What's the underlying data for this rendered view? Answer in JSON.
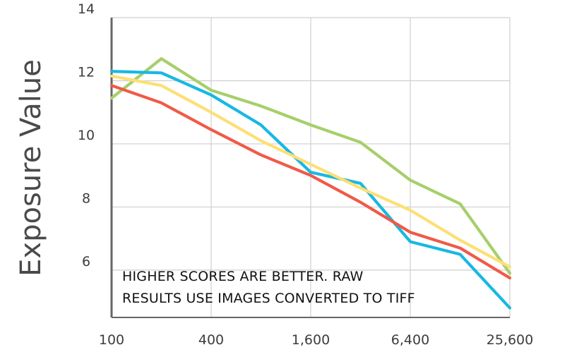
{
  "chart_data": {
    "type": "line",
    "ylabel": "Exposure Value",
    "xlabel": "",
    "title": "",
    "x_scale": "log2",
    "x": [
      100,
      200,
      400,
      800,
      1600,
      3200,
      6400,
      12800,
      25600
    ],
    "x_tick_labels": [
      {
        "value": 100,
        "label": "100"
      },
      {
        "value": 400,
        "label": "400"
      },
      {
        "value": 1600,
        "label": "1,600"
      },
      {
        "value": 6400,
        "label": "6,400"
      },
      {
        "value": 25600,
        "label": "25,600"
      }
    ],
    "y_ticks": [
      {
        "value": 6,
        "label": "6"
      },
      {
        "value": 8,
        "label": "8"
      },
      {
        "value": 10,
        "label": "10"
      },
      {
        "value": 12,
        "label": "12"
      },
      {
        "value": 14,
        "label": "14"
      }
    ],
    "ylim": [
      4.5,
      14
    ],
    "grid": true,
    "annotation": [
      "HIGHER SCORES ARE BETTER. RAW",
      "RESULTS USE IMAGES CONVERTED TO TIFF"
    ],
    "series": [
      {
        "color": "#a6cf6a",
        "points": [
          [
            100,
            11.45
          ],
          [
            200,
            12.7
          ],
          [
            400,
            11.7
          ],
          [
            800,
            11.2
          ],
          [
            1600,
            10.6
          ],
          [
            3200,
            10.05
          ],
          [
            6400,
            8.85
          ],
          [
            12800,
            8.1
          ],
          [
            25600,
            5.9
          ]
        ]
      },
      {
        "color": "#18b8e2",
        "points": [
          [
            100,
            12.3
          ],
          [
            200,
            12.25
          ],
          [
            400,
            11.55
          ],
          [
            800,
            10.6
          ],
          [
            1600,
            9.1
          ],
          [
            3200,
            8.75
          ],
          [
            6400,
            6.9
          ],
          [
            12800,
            6.5
          ],
          [
            25600,
            4.8
          ]
        ]
      },
      {
        "color": "#fddf75",
        "points": [
          [
            100,
            12.15
          ],
          [
            200,
            11.85
          ],
          [
            400,
            11.0
          ],
          [
            800,
            10.1
          ],
          [
            1600,
            9.35
          ],
          [
            3200,
            8.6
          ],
          [
            6400,
            7.9
          ],
          [
            12800,
            6.95
          ],
          [
            25600,
            6.1
          ]
        ]
      },
      {
        "color": "#f05a48",
        "points": [
          [
            100,
            11.85
          ],
          [
            200,
            11.3
          ],
          [
            400,
            10.45
          ],
          [
            800,
            9.65
          ],
          [
            1600,
            9.0
          ],
          [
            3200,
            8.15
          ],
          [
            6400,
            7.2
          ],
          [
            12800,
            6.7
          ],
          [
            25600,
            5.75
          ]
        ]
      }
    ]
  }
}
